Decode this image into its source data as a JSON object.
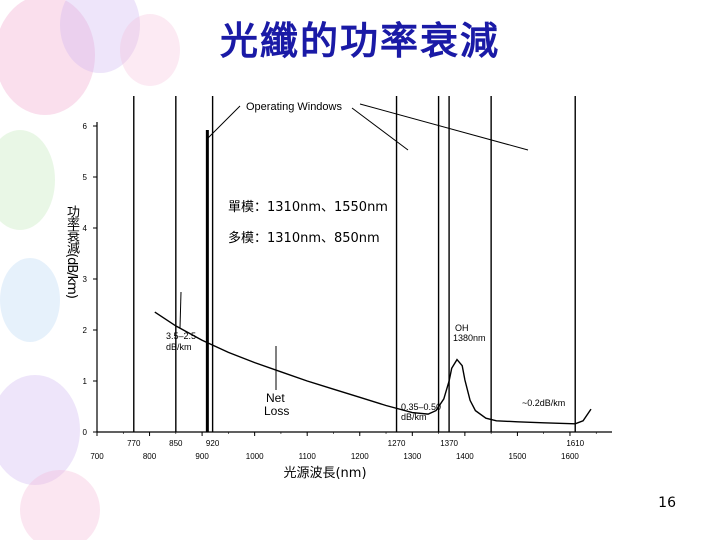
{
  "slide": {
    "title": "光纖的功率衰減",
    "page_number": "16",
    "notes": [
      "單模：1310nm、1550nm",
      "多模：1310nm、850nm"
    ]
  },
  "colors": {
    "title": "#1a1aa6",
    "line": "#000000",
    "balloon_pink": "#f4b8d8",
    "balloon_purple": "#cdb4f0",
    "balloon_green": "#c8ecc0",
    "balloon_blue": "#b8d8f4"
  },
  "chart_data": {
    "type": "line",
    "title": "",
    "xlabel": "光源波長(nm)",
    "ylabel": "功率衰減(dB/km)",
    "xlim": [
      700,
      1650
    ],
    "ylim": [
      0,
      6
    ],
    "x_ticks": [
      700,
      800,
      900,
      1000,
      1100,
      1200,
      1300,
      1400,
      1500,
      1600
    ],
    "y_ticks": [
      0,
      1,
      2,
      3,
      4,
      5,
      6
    ],
    "window_markers": [
      770,
      850,
      910,
      920,
      1270,
      1350,
      1370,
      1450,
      1610
    ],
    "window_marker_labels": [
      "770",
      "850",
      "920",
      "1270",
      "1370",
      "1610"
    ],
    "thick_marker": 910,
    "series": [
      {
        "x": [
          810,
          850,
          900,
          950,
          1000,
          1050,
          1100,
          1150,
          1200,
          1250,
          1300,
          1330,
          1345,
          1360,
          1370,
          1375,
          1385,
          1395,
          1400,
          1410,
          1420,
          1440,
          1460,
          1500,
          1550,
          1580,
          1610,
          1625,
          1640
        ],
        "y": [
          2.35,
          2.08,
          1.8,
          1.56,
          1.36,
          1.18,
          1.0,
          0.84,
          0.68,
          0.52,
          0.38,
          0.35,
          0.42,
          0.65,
          1.0,
          1.25,
          1.42,
          1.3,
          1.02,
          0.62,
          0.42,
          0.27,
          0.22,
          0.2,
          0.18,
          0.17,
          0.16,
          0.22,
          0.45
        ]
      }
    ],
    "annotations": [
      {
        "text": "Operating Windows"
      },
      {
        "text": "3.5–2.5",
        "text2": "dB/km"
      },
      {
        "text": "Net",
        "text2": "Loss"
      },
      {
        "text": "OH",
        "text2": "1380nm"
      },
      {
        "text": "0.35–0.50",
        "text2": "dB/km"
      },
      {
        "text": "~0.2dB/km"
      }
    ]
  }
}
